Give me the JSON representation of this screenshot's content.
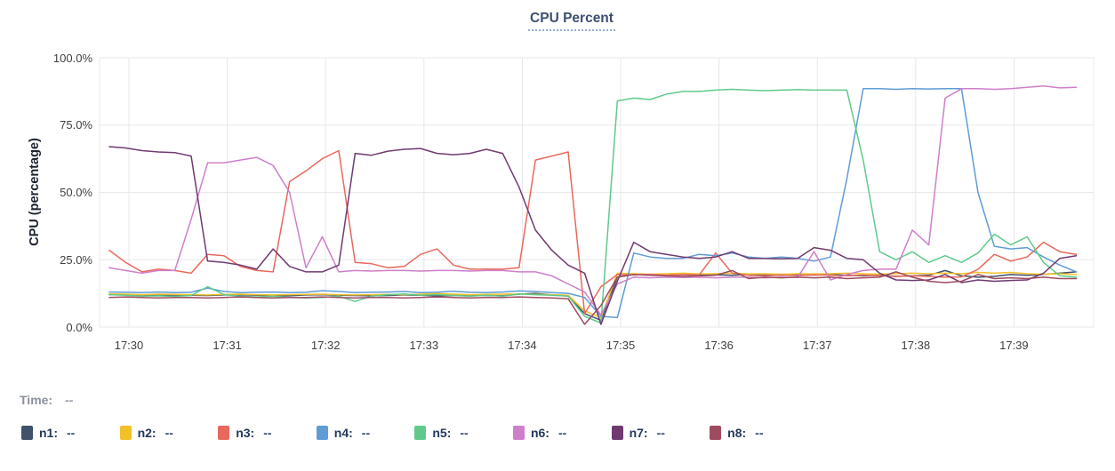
{
  "title": "CPU Percent",
  "y_axis_label": "CPU (percentage)",
  "time_readout": {
    "label": "Time:",
    "value": "--"
  },
  "chart_data": {
    "type": "line",
    "title": "CPU Percent",
    "ylabel": "CPU (percentage)",
    "ylim": [
      0,
      100
    ],
    "grid": true,
    "legend_position": "bottom",
    "y_ticks": [
      {
        "label": "100.0%",
        "v": 100
      },
      {
        "label": "75.0%",
        "v": 75
      },
      {
        "label": "50.0%",
        "v": 50
      },
      {
        "label": "25.0%",
        "v": 25
      },
      {
        "label": "0.0%",
        "v": 0
      }
    ],
    "x_ticks": [
      {
        "label": "17:30",
        "t": 30
      },
      {
        "label": "17:31",
        "t": 31
      },
      {
        "label": "17:32",
        "t": 32
      },
      {
        "label": "17:33",
        "t": 33
      },
      {
        "label": "17:34",
        "t": 34
      },
      {
        "label": "17:35",
        "t": 35
      },
      {
        "label": "17:36",
        "t": 36
      },
      {
        "label": "17:37",
        "t": 37
      },
      {
        "label": "17:38",
        "t": 38
      },
      {
        "label": "17:39",
        "t": 39
      }
    ],
    "x_start_min": 29.8,
    "x_step_min": 0.16667,
    "series": [
      {
        "name": "n1",
        "color": "#3f516d",
        "legend_value": "--",
        "values": [
          12,
          12.1,
          11.9,
          11.8,
          11.9,
          11.8,
          11.7,
          11.9,
          12,
          11.8,
          11.7,
          11.6,
          11.9,
          12,
          11.8,
          11.7,
          11.6,
          11.7,
          11.9,
          11.8,
          11.6,
          11.7,
          11.9,
          11.7,
          11.6,
          12.2,
          12.5,
          11.9,
          11.5,
          5,
          2.5,
          18.5,
          19.5,
          19.4,
          19.2,
          19.5,
          19.3,
          19.4,
          19.2,
          19.5,
          19.3,
          19.2,
          19.4,
          19.3,
          19.5,
          19.2,
          19,
          19.3,
          18.8,
          19,
          19.2,
          21,
          19,
          18.5,
          18.8,
          19.5,
          19.2,
          19.5,
          20,
          20.5
        ]
      },
      {
        "name": "n2",
        "color": "#f2c029",
        "legend_value": "--",
        "values": [
          12.3,
          12.2,
          12,
          12.2,
          12.1,
          12,
          11.9,
          12.1,
          12.2,
          12,
          11.9,
          12,
          12.1,
          12.2,
          12,
          11.9,
          12,
          12.1,
          12,
          12.2,
          12.4,
          12.2,
          12,
          12.1,
          12.2,
          12.3,
          12.1,
          12,
          11.8,
          6,
          3.5,
          20,
          19.8,
          19.6,
          19.8,
          20,
          19.7,
          19.8,
          20,
          19.7,
          19.8,
          19.6,
          19.8,
          19.7,
          19.8,
          20,
          19.8,
          19.6,
          19.8,
          20,
          19.8,
          20,
          19.8,
          20.3,
          20,
          20.3,
          19.8,
          19.6,
          19.8,
          19.5
        ]
      },
      {
        "name": "n3",
        "color": "#e8685c",
        "legend_value": "--",
        "values": [
          28.5,
          24,
          20.5,
          21.5,
          21,
          20,
          27,
          26.5,
          22.5,
          21,
          20.5,
          54,
          58,
          62.5,
          65.5,
          24,
          23.5,
          22,
          22.5,
          27,
          29,
          23,
          21.5,
          21.5,
          21.5,
          22,
          62,
          63.5,
          65,
          5,
          15,
          19.5,
          19.3,
          19.6,
          19.2,
          19.5,
          19.4,
          27.5,
          20,
          19.2,
          19,
          19.3,
          19.1,
          19.4,
          19.2,
          19,
          19.3,
          19,
          18.8,
          19,
          18.8,
          18.5,
          18.6,
          21.4,
          27,
          24.5,
          26,
          31.5,
          28,
          27
        ]
      },
      {
        "name": "n4",
        "color": "#5f9cd6",
        "legend_value": "--",
        "values": [
          13,
          12.9,
          12.8,
          13,
          12.8,
          12.9,
          14.5,
          13.2,
          12.8,
          12.9,
          13,
          12.8,
          12.9,
          13.5,
          13.2,
          12.8,
          12.9,
          13,
          13.2,
          12.8,
          12.9,
          13.3,
          12.9,
          12.8,
          13,
          13.4,
          13.2,
          12.8,
          12.5,
          11,
          4,
          3.5,
          27.5,
          26,
          25.5,
          25.5,
          27,
          26.5,
          27.5,
          26,
          25.5,
          26,
          25.5,
          24.5,
          26,
          55,
          88.5,
          88.5,
          88.3,
          88.5,
          88.4,
          88.5,
          88.5,
          50,
          30,
          29,
          29.5,
          26,
          23,
          20.5
        ]
      },
      {
        "name": "n5",
        "color": "#5fca8c",
        "legend_value": "--",
        "values": [
          12,
          11.8,
          11.5,
          11.6,
          11.4,
          11.7,
          15,
          12,
          11.5,
          11.2,
          11.5,
          11,
          10.8,
          11,
          11.5,
          9.5,
          11.5,
          12,
          12.3,
          11.8,
          12,
          11.7,
          11.5,
          11.8,
          11.5,
          12.3,
          12,
          11.8,
          11.5,
          4,
          1.5,
          84,
          85,
          84.5,
          86.5,
          87.5,
          87.5,
          88,
          88.3,
          88,
          87.8,
          88,
          88.2,
          88,
          88,
          88,
          62,
          28,
          25,
          28,
          24,
          26.5,
          24,
          27.5,
          34.5,
          30.5,
          33.5,
          24,
          19,
          18.5
        ]
      },
      {
        "name": "n6",
        "color": "#cf7fca",
        "legend_value": "--",
        "values": [
          22,
          21,
          20,
          21,
          21,
          40,
          61,
          61,
          62,
          63,
          60,
          50,
          22,
          33.5,
          20.5,
          21,
          20.8,
          21,
          21,
          20.8,
          21,
          21,
          20.8,
          21,
          21,
          20.5,
          20.5,
          19,
          16,
          13,
          4.5,
          16,
          18.5,
          18.3,
          18.5,
          18.4,
          18.5,
          18.3,
          18.5,
          18.5,
          18.3,
          18.5,
          18.4,
          28,
          17.5,
          19.5,
          21,
          21.5,
          21.5,
          36,
          30.5,
          85,
          88.5,
          88.5,
          88.3,
          88.5,
          89,
          89.5,
          88.8,
          89
        ]
      },
      {
        "name": "n7",
        "color": "#703a71",
        "legend_value": "--",
        "values": [
          67,
          66.5,
          65.5,
          65,
          64.8,
          63.5,
          24.5,
          24,
          23,
          21.5,
          29,
          22.5,
          20.5,
          20.5,
          23,
          64.5,
          63.8,
          65.3,
          66,
          66.3,
          64.5,
          64,
          64.5,
          66,
          64.5,
          52,
          36,
          28.5,
          23,
          20,
          1,
          17,
          31.5,
          28,
          27,
          26,
          25.5,
          26,
          28,
          25.5,
          25.5,
          25.3,
          25.5,
          29.5,
          28.5,
          25.5,
          25,
          20,
          17.5,
          17.3,
          17.5,
          19.5,
          16.5,
          17.5,
          17,
          17.3,
          17.5,
          20,
          25.5,
          26.5
        ]
      },
      {
        "name": "n8",
        "color": "#9e4b60",
        "legend_value": "--",
        "values": [
          11,
          11.2,
          11,
          10.8,
          11,
          11,
          10.8,
          11,
          11.2,
          11,
          10.8,
          11,
          11,
          11.2,
          11,
          10.8,
          11,
          11,
          10.8,
          11,
          11.2,
          11,
          10.8,
          11,
          11,
          11.2,
          11,
          10.8,
          10.5,
          1,
          8,
          18.5,
          19.5,
          19.2,
          19,
          18.8,
          19,
          19.2,
          21,
          18,
          18.5,
          18.3,
          18.5,
          18.3,
          18.5,
          18,
          18.3,
          18.5,
          20.5,
          18.5,
          17,
          16.5,
          17,
          19.5,
          18,
          18.3,
          18,
          18.5,
          18,
          18
        ]
      }
    ]
  }
}
